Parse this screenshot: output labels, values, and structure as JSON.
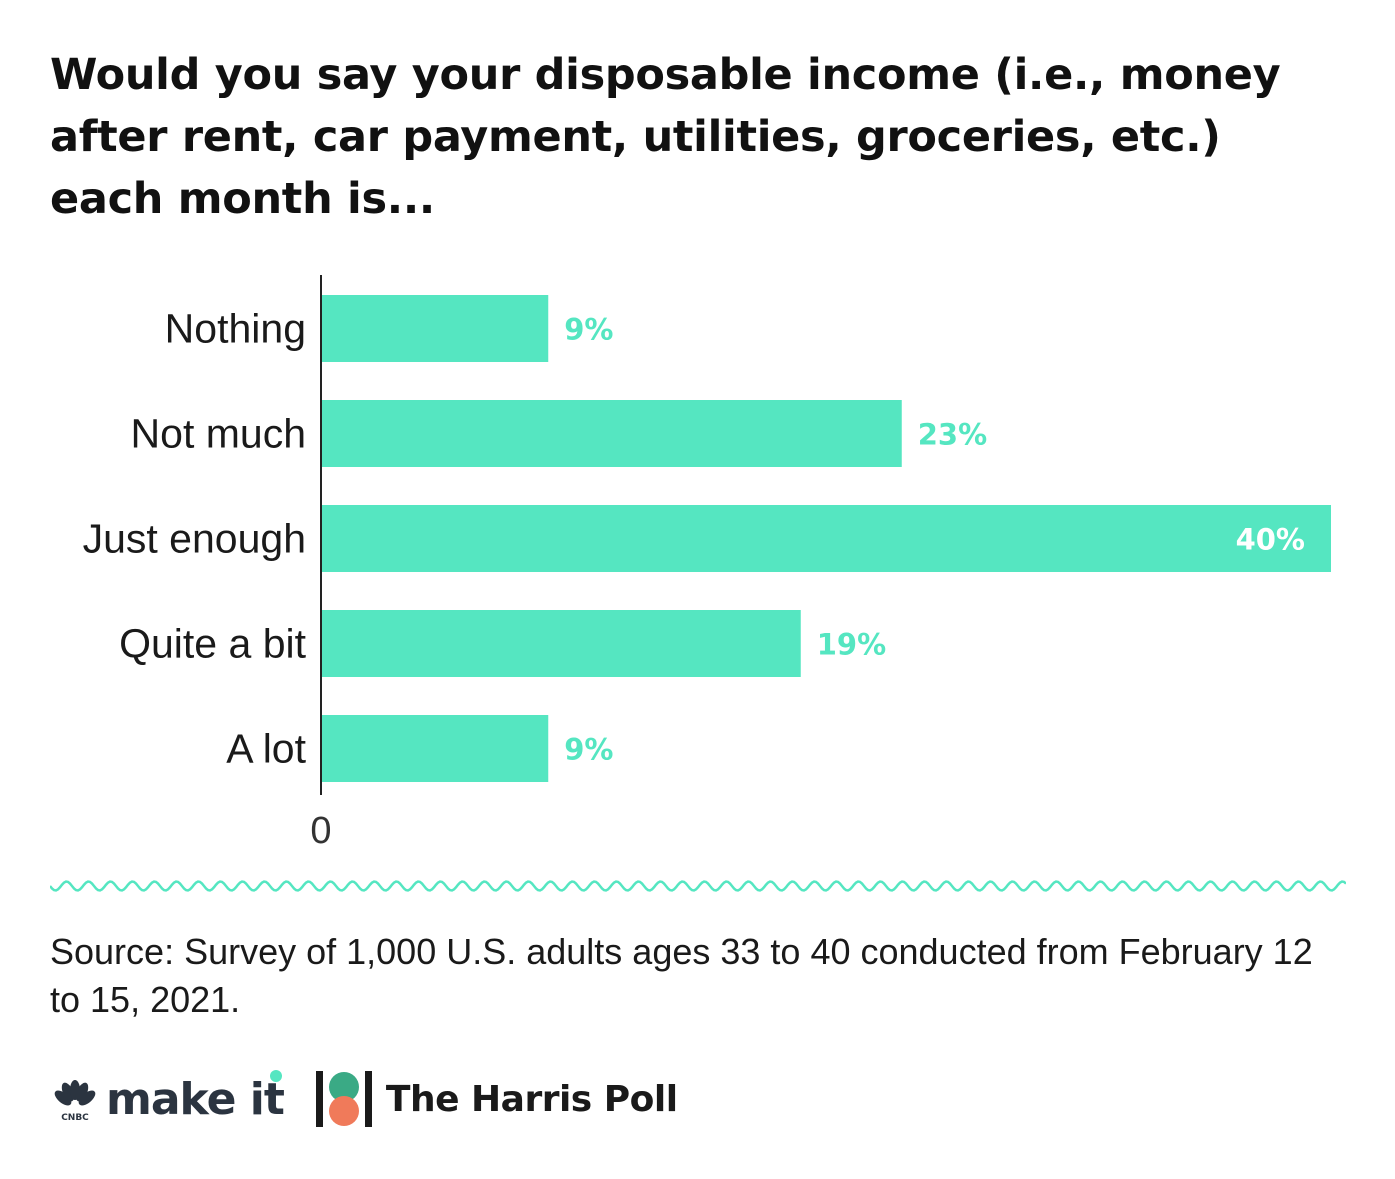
{
  "title": "Would you say your disposable income (i.e., money after rent, car payment, utilities, groceries, etc.) each month is...",
  "chart_data": {
    "type": "bar",
    "orientation": "horizontal",
    "categories": [
      "Nothing",
      "Not much",
      "Just enough",
      "Quite a bit",
      "A lot"
    ],
    "values": [
      9,
      23,
      40,
      19,
      9
    ],
    "value_labels": [
      "9%",
      "23%",
      "40%",
      "19%",
      "9%"
    ],
    "x_ticks": [
      "0"
    ],
    "xlim": [
      0,
      40
    ],
    "bar_color": "#55e6c1",
    "label_color": "#55e6c1",
    "inside_label_color": "#ffffff",
    "grid": false
  },
  "source": "Source: Survey of 1,000 U.S. adults ages 33 to 40 conducted from February 12 to 15, 2021.",
  "logos": {
    "cnbc_text": "CNBC",
    "make_it_text": "make it",
    "harris_text": "The Harris Poll",
    "make_it_color": "#2b3440",
    "accent_color": "#55e6c1",
    "harris_green": "#3aaa85",
    "harris_orange": "#f07a5a"
  }
}
